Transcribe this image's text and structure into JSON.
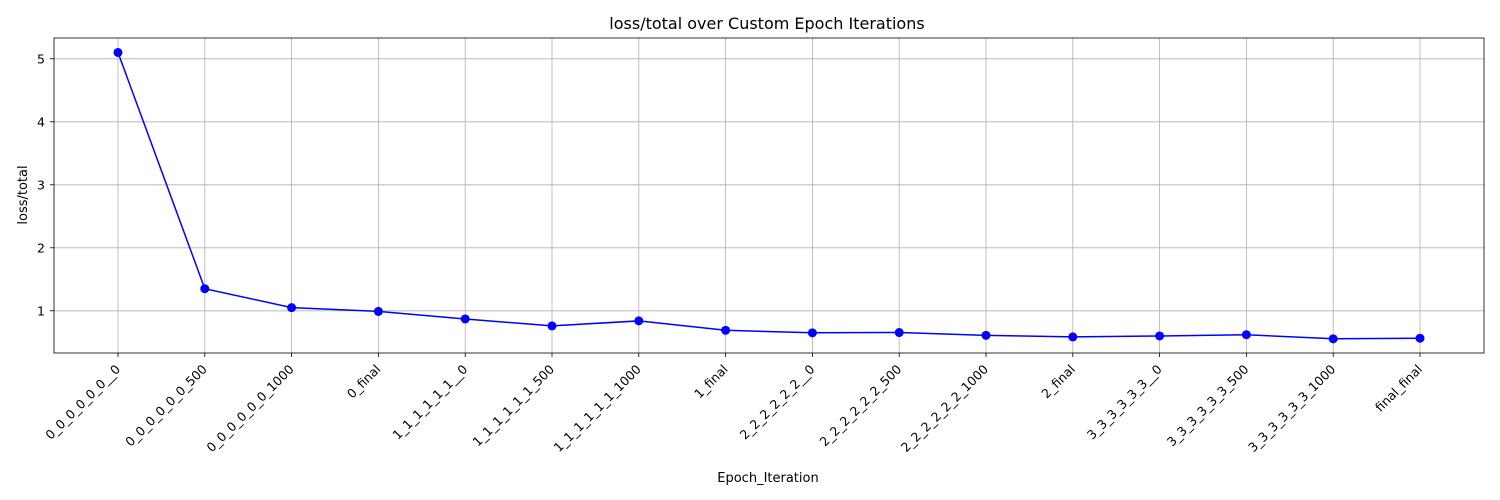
{
  "chart_data": {
    "type": "line",
    "title": "loss/total over Custom Epoch Iterations",
    "xlabel": "Epoch_Iteration",
    "ylabel": "loss/total",
    "categories": [
      "0_0_0_0_0_0__0",
      "0_0_0_0_0_0_500",
      "0_0_0_0_0_0_1000",
      "0_final",
      "1_1_1_1_1_1__0",
      "1_1_1_1_1_1_500",
      "1_1_1_1_1_1_1000",
      "1_final",
      "2_2_2_2_2_2__0",
      "2_2_2_2_2_2_500",
      "2_2_2_2_2_2_1000",
      "2_final",
      "3_3_3_3_3_3__0",
      "3_3_3_3_3_3_500",
      "3_3_3_3_3_3_1000",
      "final_final"
    ],
    "series": [
      {
        "color": "#0000ff",
        "values": [
          5.1,
          1.35,
          1.05,
          0.99,
          0.87,
          0.76,
          0.84,
          0.69,
          0.65,
          0.655,
          0.61,
          0.585,
          0.6,
          0.62,
          0.555,
          0.565
        ]
      }
    ],
    "yticks": [
      1,
      2,
      3,
      4,
      5
    ],
    "ylim": [
      0.33,
      5.33
    ],
    "grid": true,
    "marker": "circle"
  }
}
